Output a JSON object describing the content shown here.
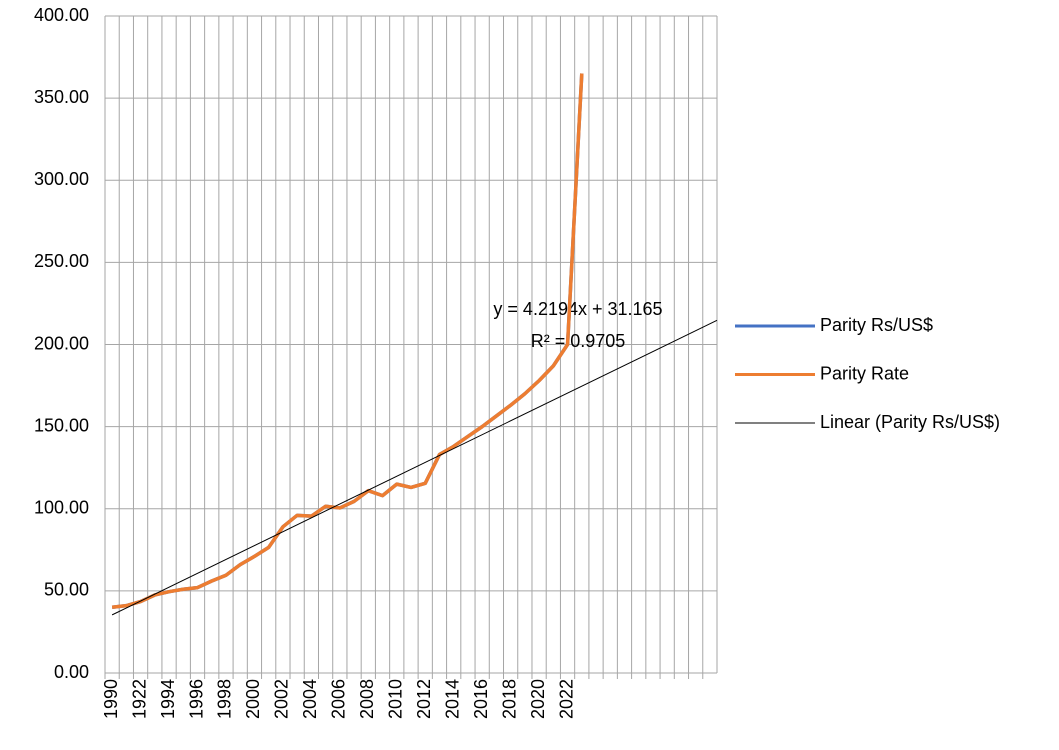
{
  "chart_data": {
    "type": "line",
    "categories": [
      "1990",
      null,
      "1922",
      null,
      "1994",
      null,
      "1996",
      null,
      "1998",
      null,
      "2000",
      null,
      "2002",
      null,
      "2004",
      null,
      "2006",
      null,
      "2008",
      null,
      "2010",
      null,
      "2012",
      null,
      "2014",
      null,
      "2016",
      null,
      "2018",
      null,
      "2020",
      null,
      "2022",
      null,
      null,
      null,
      null,
      null,
      null,
      null,
      null,
      null,
      null
    ],
    "series": [
      {
        "name": "Parity Rs/US$",
        "color": "#4472c4",
        "values": [
          40,
          41,
          43.5,
          47.5,
          49.5,
          51,
          52,
          56,
          59.5,
          66,
          71,
          76.5,
          89,
          96,
          95.5,
          101.5,
          100.5,
          104.5,
          111,
          108,
          115,
          113,
          115.5,
          133,
          138,
          144,
          150,
          156.5,
          163,
          170,
          178,
          187,
          200,
          365,
          null,
          null,
          null,
          null,
          null,
          null,
          null,
          null,
          null
        ]
      },
      {
        "name": "Parity Rate",
        "color": "#ed7d31",
        "values": [
          40,
          41,
          43.5,
          47.5,
          49.5,
          51,
          52,
          56,
          59.5,
          66,
          71,
          76.5,
          89,
          96,
          95.5,
          101.5,
          100.5,
          104.5,
          111,
          108,
          115,
          113,
          115.5,
          133,
          138,
          144,
          150,
          156.5,
          163,
          170,
          178,
          187,
          200,
          365,
          null,
          null,
          null,
          null,
          null,
          null,
          null,
          null,
          null
        ]
      }
    ],
    "trendline": {
      "name": "Linear (Parity Rs/US$)",
      "color": "#000000",
      "slope": 4.2194,
      "intercept": 31.165,
      "equation": "y = 4.2194x + 31.165",
      "r_squared": "R² = 0.9705"
    },
    "ylim": [
      0,
      400
    ],
    "yticks": [
      {
        "value": 0,
        "label": "0.00"
      },
      {
        "value": 50,
        "label": "50.00"
      },
      {
        "value": 100,
        "label": "100.00"
      },
      {
        "value": 150,
        "label": "150.00"
      },
      {
        "value": 200,
        "label": "200.00"
      },
      {
        "value": 250,
        "label": "250.00"
      },
      {
        "value": 300,
        "label": "300.00"
      },
      {
        "value": 350,
        "label": "350.00"
      },
      {
        "value": 400,
        "label": "400.00"
      }
    ],
    "grid": true,
    "legend": "right"
  }
}
